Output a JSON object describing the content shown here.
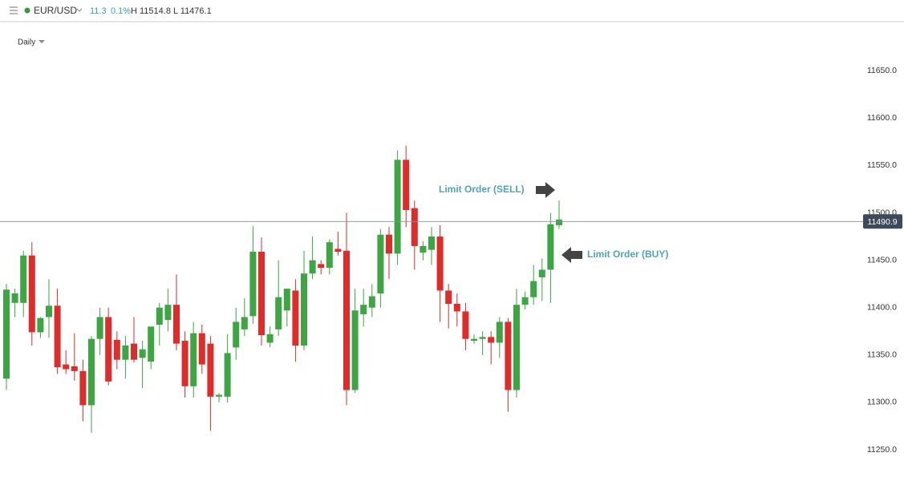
{
  "header": {
    "symbol": "EUR/USD",
    "change": "11.3",
    "change_pct": "0.1%",
    "high": "H 11514.8",
    "low": "L 11476.1",
    "interval": "Daily"
  },
  "chart_data": {
    "type": "candlestick",
    "up_color": "#3da643",
    "down_color": "#e02b2b",
    "open": [
      11325,
      11405,
      11405,
      11455,
      11374,
      11390,
      11402,
      11340,
      11338,
      11333,
      11297,
      11367,
      11390,
      11366,
      11345,
      11362,
      11347,
      11343,
      11382,
      11387,
      11403,
      11365,
      11317,
      11373,
      11362,
      11306,
      11306,
      11358,
      11377,
      11391,
      11459,
      11363,
      11377,
      11397,
      11418,
      11360,
      11436,
      11446,
      11442,
      11462,
      11460,
      11313,
      11393,
      11400,
      11415,
      11477,
      11457,
      11556,
      11505,
      11458,
      11461,
      11475,
      11418,
      11404,
      11396,
      11365,
      11367,
      11369,
      11363,
      11385,
      11313,
      11403,
      11411,
      11432,
      11440,
      11487
    ],
    "high": [
      11425,
      11420,
      11460,
      11469,
      11390,
      11430,
      11420,
      11355,
      11373,
      11345,
      11370,
      11400,
      11400,
      11375,
      11370,
      11390,
      11365,
      11380,
      11405,
      11420,
      11435,
      11375,
      11385,
      11382,
      11370,
      11310,
      11372,
      11400,
      11410,
      11486,
      11474,
      11380,
      11450,
      11420,
      11430,
      11460,
      11475,
      11450,
      11472,
      11480,
      11500,
      11420,
      11420,
      11425,
      11483,
      11485,
      11566,
      11571,
      11513,
      11470,
      11485,
      11487,
      11425,
      11415,
      11405,
      11372,
      11375,
      11375,
      11390,
      11389,
      11420,
      11417,
      11445,
      11452,
      11500,
      11513
    ],
    "low": [
      11313,
      11390,
      11390,
      11360,
      11368,
      11368,
      11330,
      11330,
      11323,
      11280,
      11268,
      11350,
      11318,
      11335,
      11325,
      11342,
      11315,
      11335,
      11360,
      11375,
      11355,
      11305,
      11305,
      11330,
      11270,
      11300,
      11300,
      11345,
      11370,
      11383,
      11360,
      11358,
      11370,
      11380,
      11343,
      11355,
      11430,
      11435,
      11435,
      11455,
      11297,
      11310,
      11380,
      11390,
      11400,
      11430,
      11445,
      11485,
      11440,
      11450,
      11445,
      11385,
      11378,
      11380,
      11355,
      11362,
      11350,
      11340,
      11347,
      11290,
      11305,
      11398,
      11403,
      11407,
      11405,
      11483
    ],
    "close": [
      11419,
      11415,
      11455,
      11374,
      11389,
      11402,
      11337,
      11335,
      11333,
      11297,
      11367,
      11390,
      11322,
      11345,
      11360,
      11345,
      11356,
      11380,
      11400,
      11403,
      11362,
      11317,
      11373,
      11340,
      11306,
      11308,
      11352,
      11385,
      11390,
      11459,
      11371,
      11372,
      11411,
      11420,
      11360,
      11436,
      11450,
      11442,
      11469,
      11459,
      11313,
      11397,
      11403,
      11412,
      11477,
      11457,
      11556,
      11503,
      11465,
      11465,
      11475,
      11418,
      11404,
      11396,
      11367,
      11367,
      11369,
      11363,
      11385,
      11313,
      11403,
      11411,
      11428,
      11440,
      11488,
      11493
    ],
    "ylim": [
      11217,
      11701
    ],
    "yticks": [
      {
        "value": 11250,
        "label": "11250.0"
      },
      {
        "value": 11300,
        "label": "11300.0"
      },
      {
        "value": 11350,
        "label": "11350.0"
      },
      {
        "value": 11400,
        "label": "11400.0"
      },
      {
        "value": 11450,
        "label": "11450.0"
      },
      {
        "value": 11500,
        "label": "11500.0"
      },
      {
        "value": 11550,
        "label": "11550.0"
      },
      {
        "value": 11600,
        "label": "11600.0"
      },
      {
        "value": 11650,
        "label": "11650.0"
      }
    ],
    "last_price": 11490.9,
    "annotations": [
      "Limit Order (SELL)",
      "Limit Order (BUY)"
    ]
  }
}
